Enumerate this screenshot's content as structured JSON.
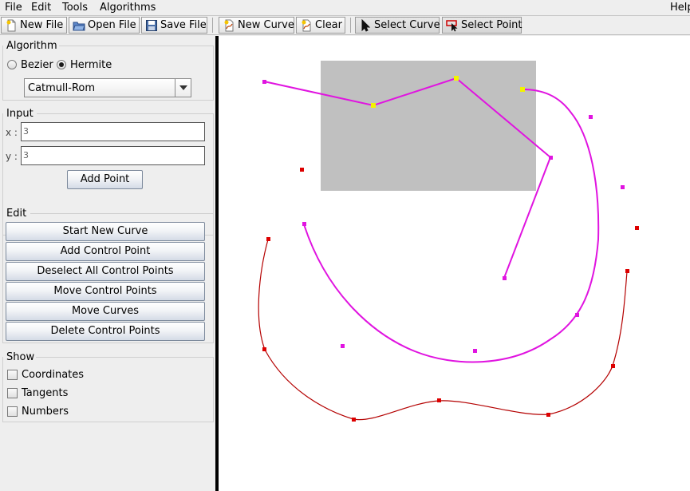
{
  "menu": {
    "items": [
      {
        "label": "File"
      },
      {
        "label": "Edit"
      },
      {
        "label": "Tools"
      },
      {
        "label": "Algorithms"
      },
      {
        "label": "Help"
      }
    ]
  },
  "toolbar": {
    "new_file": "New File",
    "open_file": "Open File",
    "save_file": "Save File",
    "new_curve": "New Curve",
    "clear": "Clear",
    "select_curve": "Select Curve",
    "select_point": "Select Point"
  },
  "algorithm": {
    "title": "Algorithm",
    "bezier": "Bezier",
    "hermite": "Hermite",
    "selected": "Hermite",
    "type_value": "Catmull-Rom"
  },
  "input": {
    "title": "Input",
    "x_label": "x :",
    "x_value": "3",
    "y_label": "y :",
    "y_value": "3",
    "add_point": "Add Point"
  },
  "edit": {
    "title": "Edit",
    "start_new_curve": "Start New Curve",
    "add_control_point": "Add Control Point",
    "deselect_all": "Deselect All Control Points",
    "move_control_points": "Move Control Points",
    "move_curves": "Move Curves",
    "delete_control_points": "Delete Control Points"
  },
  "show": {
    "title": "Show",
    "coordinates": "Coordinates",
    "tangents": "Tangents",
    "numbers": "Numbers"
  },
  "colors": {
    "magenta": "#e014e0",
    "dark_red": "#b40000",
    "red_point": "#dd0000",
    "yellow": "#f2f200",
    "selection_rect": "#c0c0c0"
  }
}
